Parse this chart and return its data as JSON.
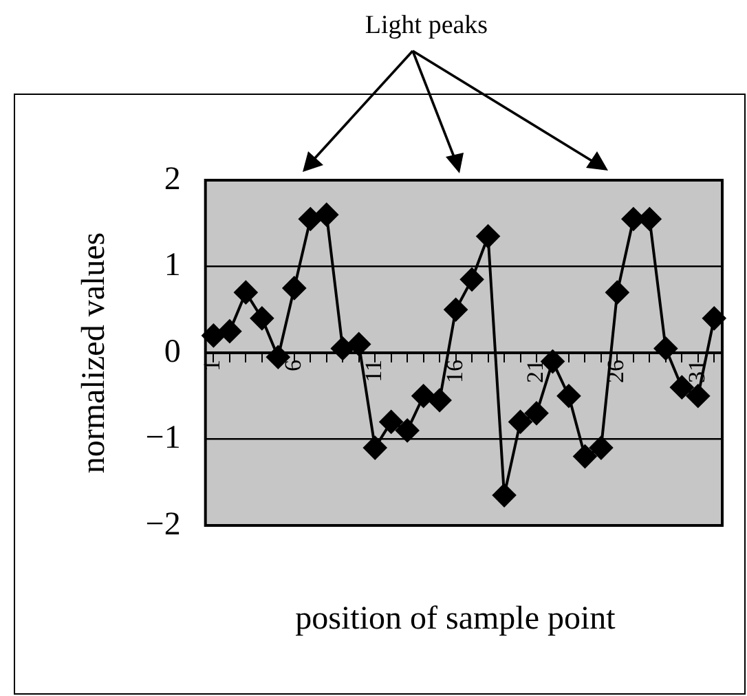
{
  "chart_data": {
    "type": "line",
    "xlabel": "position of sample point",
    "ylabel": "normalized values",
    "annotations": [
      "Light peaks"
    ],
    "categories": [
      "1",
      null,
      null,
      null,
      null,
      "6",
      null,
      null,
      null,
      null,
      "11",
      null,
      null,
      null,
      null,
      "16",
      null,
      null,
      null,
      null,
      "21",
      null,
      null,
      null,
      null,
      "26",
      null,
      null,
      null,
      null,
      "31",
      null
    ],
    "series": [
      {
        "color": "#000000",
        "values": [
          0.2,
          0.25,
          0.7,
          0.4,
          -0.05,
          0.75,
          1.55,
          1.6,
          0.05,
          0.1,
          -1.1,
          -0.8,
          -0.9,
          -0.5,
          -0.55,
          0.5,
          0.85,
          1.35,
          -1.65,
          -0.8,
          -0.7,
          -0.1,
          -0.5,
          -1.2,
          -1.1,
          0.7,
          1.55,
          1.55,
          0.05,
          -0.4,
          -0.5,
          0.4
        ]
      }
    ],
    "ylim": [
      -2,
      2
    ],
    "yticks": [
      -2,
      -1,
      0,
      1,
      2
    ],
    "grid": "y",
    "legend": false,
    "marker": "diamond",
    "line_style": "solid"
  }
}
